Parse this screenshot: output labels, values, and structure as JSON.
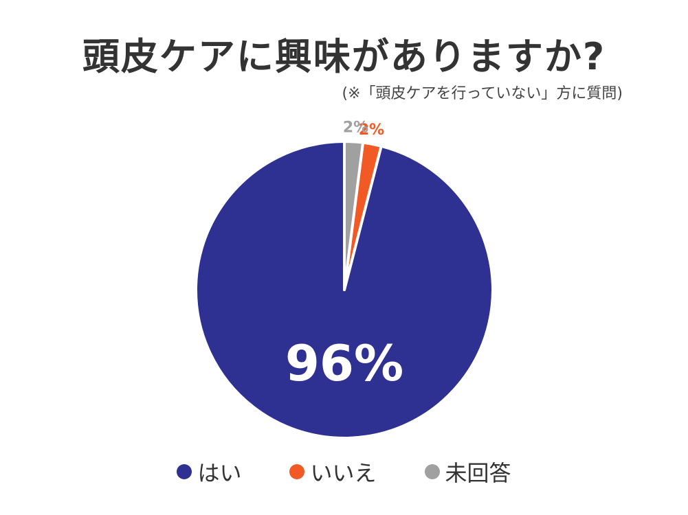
{
  "title": "頭皮ケアに興味がありますか?",
  "subtitle": "(※「頭皮ケアを行っていない」方に質問)",
  "chart_data": {
    "type": "pie",
    "title": "頭皮ケアに興味がありますか?",
    "subtitle": "(※「頭皮ケアを行っていない」方に質問)",
    "slices": [
      {
        "label": "はい",
        "value": 96,
        "display": "96%",
        "color": "#2e3192",
        "label_color": "#ffffff"
      },
      {
        "label": "いいえ",
        "value": 2,
        "display": "2%",
        "color": "#f15a24",
        "label_color": "#f15a24"
      },
      {
        "label": "未回答",
        "value": 2,
        "display": "2%",
        "color": "#a0a0a0",
        "label_color": "#a0a0a0"
      }
    ],
    "legend_position": "bottom",
    "start": "top",
    "direction": "counter-clockwise"
  }
}
